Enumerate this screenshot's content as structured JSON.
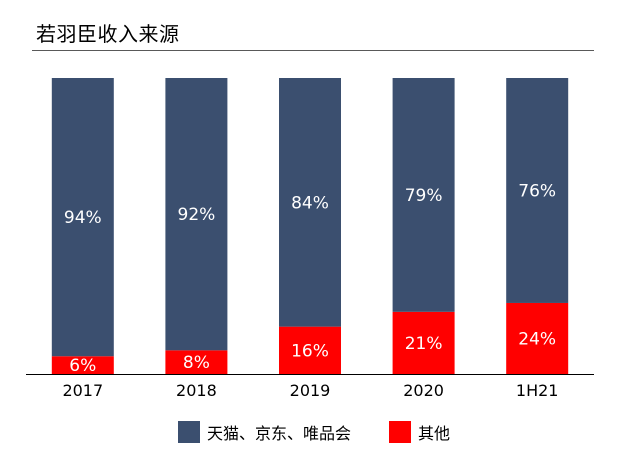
{
  "chart_data": {
    "type": "bar",
    "stacked": true,
    "title": "若羽臣收入来源",
    "categories": [
      "2017",
      "2018",
      "2019",
      "2020",
      "1H21"
    ],
    "series": [
      {
        "name": "其他",
        "values": [
          6,
          8,
          16,
          21,
          24
        ],
        "labels": [
          "6%",
          "8%",
          "16%",
          "21%",
          "24%"
        ],
        "color": "#ff0000"
      },
      {
        "name": "天猫、京东、唯品会",
        "values": [
          94,
          92,
          84,
          79,
          76
        ],
        "labels": [
          "94%",
          "92%",
          "84%",
          "79%",
          "76%"
        ],
        "color": "#3b4f6f"
      }
    ],
    "ylim": [
      0,
      100
    ],
    "grid": false,
    "legend_position": "bottom",
    "legend_order": [
      "天猫、京东、唯品会",
      "其他"
    ]
  },
  "colors": {
    "axis": "#000000",
    "label_text": "#ffffff",
    "tick_text": "#000000"
  }
}
